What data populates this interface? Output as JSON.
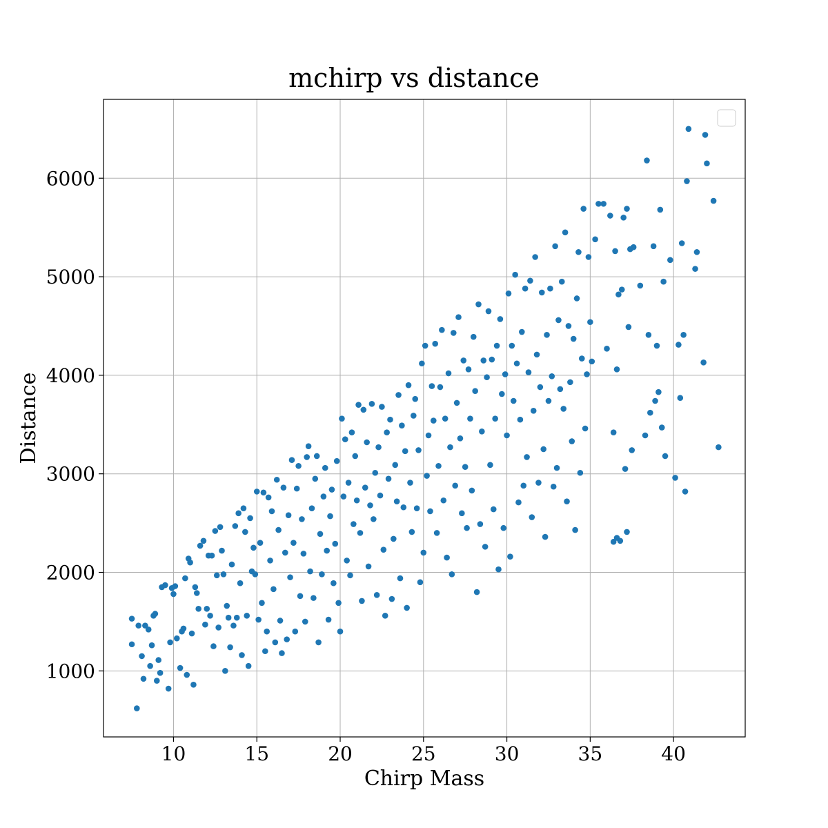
{
  "chart_data": {
    "type": "scatter",
    "title": "mchirp vs distance",
    "xlabel": "Chirp Mass",
    "ylabel": "Distance",
    "xlim": [
      5.8,
      44.3
    ],
    "ylim": [
      330,
      6800
    ],
    "xticks": [
      10,
      15,
      20,
      25,
      30,
      35,
      40
    ],
    "yticks": [
      1000,
      2000,
      3000,
      4000,
      5000,
      6000
    ],
    "grid": true,
    "legend": "top-right (empty)",
    "color": "#1f77b4",
    "series": [
      {
        "points": [
          [
            7.8,
            620
          ],
          [
            7.5,
            1270
          ],
          [
            7.5,
            1530
          ],
          [
            7.9,
            1460
          ],
          [
            8.1,
            1150
          ],
          [
            8.2,
            920
          ],
          [
            8.3,
            1460
          ],
          [
            8.5,
            1420
          ],
          [
            8.6,
            1050
          ],
          [
            8.7,
            1260
          ],
          [
            8.8,
            1560
          ],
          [
            8.9,
            1580
          ],
          [
            9.0,
            900
          ],
          [
            9.1,
            1110
          ],
          [
            9.2,
            980
          ],
          [
            9.3,
            1850
          ],
          [
            9.5,
            1870
          ],
          [
            9.7,
            820
          ],
          [
            9.8,
            1290
          ],
          [
            9.9,
            1840
          ],
          [
            10.0,
            1780
          ],
          [
            10.1,
            1860
          ],
          [
            10.2,
            1330
          ],
          [
            10.4,
            1030
          ],
          [
            10.5,
            1400
          ],
          [
            10.6,
            1430
          ],
          [
            10.7,
            1940
          ],
          [
            10.8,
            960
          ],
          [
            10.9,
            2140
          ],
          [
            11.0,
            2100
          ],
          [
            11.1,
            1380
          ],
          [
            11.2,
            860
          ],
          [
            11.3,
            1850
          ],
          [
            11.4,
            1790
          ],
          [
            11.5,
            1630
          ],
          [
            11.6,
            2270
          ],
          [
            11.8,
            2320
          ],
          [
            11.9,
            1470
          ],
          [
            12.0,
            1630
          ],
          [
            12.1,
            2170
          ],
          [
            12.2,
            1560
          ],
          [
            12.3,
            2170
          ],
          [
            12.4,
            1250
          ],
          [
            12.5,
            2420
          ],
          [
            12.6,
            1970
          ],
          [
            12.7,
            1440
          ],
          [
            12.8,
            2460
          ],
          [
            12.9,
            2220
          ],
          [
            13.0,
            1980
          ],
          [
            13.1,
            1000
          ],
          [
            13.2,
            1660
          ],
          [
            13.3,
            1540
          ],
          [
            13.4,
            1240
          ],
          [
            13.5,
            2080
          ],
          [
            13.6,
            1460
          ],
          [
            13.7,
            2470
          ],
          [
            13.8,
            1540
          ],
          [
            13.9,
            2600
          ],
          [
            14.0,
            1890
          ],
          [
            14.1,
            1160
          ],
          [
            14.2,
            2650
          ],
          [
            14.3,
            2410
          ],
          [
            14.4,
            1560
          ],
          [
            14.5,
            1050
          ],
          [
            14.6,
            2550
          ],
          [
            14.7,
            2010
          ],
          [
            14.8,
            2250
          ],
          [
            14.9,
            1980
          ],
          [
            15.0,
            2820
          ],
          [
            15.1,
            1520
          ],
          [
            15.2,
            2300
          ],
          [
            15.3,
            1690
          ],
          [
            15.4,
            2810
          ],
          [
            15.5,
            1200
          ],
          [
            15.6,
            1400
          ],
          [
            15.7,
            2760
          ],
          [
            15.8,
            2120
          ],
          [
            15.9,
            2620
          ],
          [
            16.0,
            1830
          ],
          [
            16.1,
            1290
          ],
          [
            16.2,
            2940
          ],
          [
            16.3,
            2430
          ],
          [
            16.4,
            1510
          ],
          [
            16.5,
            1180
          ],
          [
            16.6,
            2860
          ],
          [
            16.7,
            2200
          ],
          [
            16.8,
            1320
          ],
          [
            16.9,
            2580
          ],
          [
            17.0,
            1950
          ],
          [
            17.1,
            3140
          ],
          [
            17.2,
            2300
          ],
          [
            17.3,
            1400
          ],
          [
            17.4,
            2850
          ],
          [
            17.5,
            3080
          ],
          [
            17.6,
            1760
          ],
          [
            17.7,
            2540
          ],
          [
            17.8,
            2190
          ],
          [
            17.9,
            1500
          ],
          [
            18.0,
            3170
          ],
          [
            18.1,
            3280
          ],
          [
            18.2,
            2010
          ],
          [
            18.3,
            2650
          ],
          [
            18.4,
            1740
          ],
          [
            18.5,
            2950
          ],
          [
            18.6,
            3180
          ],
          [
            18.7,
            1290
          ],
          [
            18.8,
            2390
          ],
          [
            18.9,
            1980
          ],
          [
            19.0,
            2770
          ],
          [
            19.1,
            3060
          ],
          [
            19.2,
            2220
          ],
          [
            19.3,
            1520
          ],
          [
            19.4,
            2570
          ],
          [
            19.5,
            2840
          ],
          [
            19.6,
            1890
          ],
          [
            19.7,
            2290
          ],
          [
            19.8,
            3130
          ],
          [
            19.9,
            1690
          ],
          [
            20.0,
            1400
          ],
          [
            20.1,
            3560
          ],
          [
            20.2,
            2770
          ],
          [
            20.3,
            3350
          ],
          [
            20.4,
            2120
          ],
          [
            20.5,
            2910
          ],
          [
            20.6,
            1970
          ],
          [
            20.7,
            3420
          ],
          [
            20.8,
            2490
          ],
          [
            20.9,
            3180
          ],
          [
            21.0,
            2730
          ],
          [
            21.1,
            3700
          ],
          [
            21.2,
            2400
          ],
          [
            21.3,
            1710
          ],
          [
            21.4,
            3650
          ],
          [
            21.5,
            2860
          ],
          [
            21.6,
            3320
          ],
          [
            21.7,
            2060
          ],
          [
            21.8,
            2680
          ],
          [
            21.9,
            3710
          ],
          [
            22.0,
            2540
          ],
          [
            22.1,
            3010
          ],
          [
            22.2,
            1770
          ],
          [
            22.3,
            3270
          ],
          [
            22.4,
            2780
          ],
          [
            22.5,
            3680
          ],
          [
            22.6,
            2230
          ],
          [
            22.7,
            1560
          ],
          [
            22.8,
            3420
          ],
          [
            22.9,
            2950
          ],
          [
            23.0,
            3550
          ],
          [
            23.1,
            1730
          ],
          [
            23.2,
            2340
          ],
          [
            23.3,
            3090
          ],
          [
            23.4,
            2720
          ],
          [
            23.5,
            3800
          ],
          [
            23.6,
            1940
          ],
          [
            23.7,
            3490
          ],
          [
            23.8,
            2660
          ],
          [
            23.9,
            3230
          ],
          [
            24.0,
            1640
          ],
          [
            24.1,
            3900
          ],
          [
            24.2,
            2910
          ],
          [
            24.3,
            2410
          ],
          [
            24.4,
            3590
          ],
          [
            24.5,
            3760
          ],
          [
            24.6,
            2650
          ],
          [
            24.7,
            3240
          ],
          [
            24.8,
            1900
          ],
          [
            24.9,
            4120
          ],
          [
            25.0,
            2200
          ],
          [
            25.1,
            4300
          ],
          [
            25.2,
            2980
          ],
          [
            25.3,
            3390
          ],
          [
            25.4,
            2620
          ],
          [
            25.5,
            3890
          ],
          [
            25.6,
            3540
          ],
          [
            25.7,
            4320
          ],
          [
            25.8,
            2400
          ],
          [
            25.9,
            3080
          ],
          [
            26.0,
            3880
          ],
          [
            26.1,
            4460
          ],
          [
            26.2,
            2730
          ],
          [
            26.3,
            3560
          ],
          [
            26.4,
            2150
          ],
          [
            26.5,
            4020
          ],
          [
            26.6,
            3270
          ],
          [
            26.7,
            1980
          ],
          [
            26.8,
            4430
          ],
          [
            26.9,
            2880
          ],
          [
            27.0,
            3720
          ],
          [
            27.1,
            4590
          ],
          [
            27.2,
            3360
          ],
          [
            27.3,
            2600
          ],
          [
            27.4,
            4150
          ],
          [
            27.5,
            3070
          ],
          [
            27.6,
            2450
          ],
          [
            27.7,
            4060
          ],
          [
            27.8,
            3560
          ],
          [
            27.9,
            2830
          ],
          [
            28.0,
            4390
          ],
          [
            28.1,
            3840
          ],
          [
            28.2,
            1800
          ],
          [
            28.3,
            4720
          ],
          [
            28.4,
            2490
          ],
          [
            28.5,
            3430
          ],
          [
            28.6,
            4150
          ],
          [
            28.7,
            2260
          ],
          [
            28.8,
            3980
          ],
          [
            28.9,
            4650
          ],
          [
            29.0,
            3090
          ],
          [
            29.1,
            4160
          ],
          [
            29.2,
            2640
          ],
          [
            29.3,
            3560
          ],
          [
            29.4,
            4300
          ],
          [
            29.5,
            2030
          ],
          [
            29.6,
            4570
          ],
          [
            29.7,
            3810
          ],
          [
            29.8,
            2450
          ],
          [
            29.9,
            4010
          ],
          [
            30.0,
            3390
          ],
          [
            30.1,
            4830
          ],
          [
            30.2,
            2160
          ],
          [
            30.3,
            4300
          ],
          [
            30.4,
            3740
          ],
          [
            30.5,
            5020
          ],
          [
            30.6,
            4120
          ],
          [
            30.7,
            2710
          ],
          [
            30.8,
            3550
          ],
          [
            30.9,
            4440
          ],
          [
            31.0,
            2880
          ],
          [
            31.1,
            4880
          ],
          [
            31.2,
            3170
          ],
          [
            31.3,
            4030
          ],
          [
            31.4,
            4960
          ],
          [
            31.5,
            2560
          ],
          [
            31.6,
            3640
          ],
          [
            31.7,
            5200
          ],
          [
            31.8,
            4210
          ],
          [
            31.9,
            2910
          ],
          [
            32.0,
            3880
          ],
          [
            32.1,
            4840
          ],
          [
            32.2,
            3250
          ],
          [
            32.3,
            2360
          ],
          [
            32.4,
            4410
          ],
          [
            32.5,
            3740
          ],
          [
            32.6,
            4880
          ],
          [
            32.7,
            3990
          ],
          [
            32.8,
            2870
          ],
          [
            32.9,
            5310
          ],
          [
            33.0,
            3060
          ],
          [
            33.1,
            4560
          ],
          [
            33.2,
            3860
          ],
          [
            33.3,
            4950
          ],
          [
            33.4,
            3660
          ],
          [
            33.5,
            5450
          ],
          [
            33.6,
            2720
          ],
          [
            33.7,
            4500
          ],
          [
            33.8,
            3930
          ],
          [
            33.9,
            3330
          ],
          [
            34.0,
            4370
          ],
          [
            34.1,
            2430
          ],
          [
            34.2,
            4780
          ],
          [
            34.3,
            5250
          ],
          [
            34.4,
            3010
          ],
          [
            34.5,
            4170
          ],
          [
            34.6,
            5690
          ],
          [
            34.7,
            3460
          ],
          [
            34.8,
            4010
          ],
          [
            34.9,
            5200
          ],
          [
            35.0,
            4540
          ],
          [
            35.1,
            4140
          ],
          [
            35.3,
            5380
          ],
          [
            35.5,
            5740
          ],
          [
            35.8,
            5740
          ],
          [
            36.0,
            4270
          ],
          [
            36.2,
            5620
          ],
          [
            36.4,
            3420
          ],
          [
            36.5,
            5260
          ],
          [
            36.6,
            4060
          ],
          [
            36.7,
            4820
          ],
          [
            36.8,
            2320
          ],
          [
            36.9,
            4870
          ],
          [
            37.0,
            5600
          ],
          [
            37.1,
            3050
          ],
          [
            37.2,
            5690
          ],
          [
            37.3,
            4490
          ],
          [
            37.4,
            5280
          ],
          [
            37.5,
            3240
          ],
          [
            37.6,
            5300
          ],
          [
            38.0,
            4910
          ],
          [
            38.3,
            3390
          ],
          [
            38.4,
            6180
          ],
          [
            38.5,
            4410
          ],
          [
            38.6,
            3620
          ],
          [
            38.8,
            5310
          ],
          [
            38.9,
            3740
          ],
          [
            39.0,
            4300
          ],
          [
            39.1,
            3830
          ],
          [
            39.2,
            5680
          ],
          [
            39.3,
            3470
          ],
          [
            39.4,
            4950
          ],
          [
            39.5,
            3180
          ],
          [
            39.8,
            5170
          ],
          [
            40.1,
            2960
          ],
          [
            40.3,
            4310
          ],
          [
            40.4,
            3770
          ],
          [
            40.5,
            5340
          ],
          [
            40.6,
            4410
          ],
          [
            40.7,
            2820
          ],
          [
            40.8,
            5970
          ],
          [
            40.9,
            6500
          ],
          [
            41.3,
            5080
          ],
          [
            41.4,
            5250
          ],
          [
            41.8,
            4130
          ],
          [
            41.9,
            6440
          ],
          [
            42.0,
            6150
          ],
          [
            42.4,
            5770
          ],
          [
            42.7,
            3270
          ],
          [
            36.4,
            2310
          ],
          [
            36.6,
            2350
          ],
          [
            37.2,
            2410
          ]
        ]
      }
    ]
  }
}
